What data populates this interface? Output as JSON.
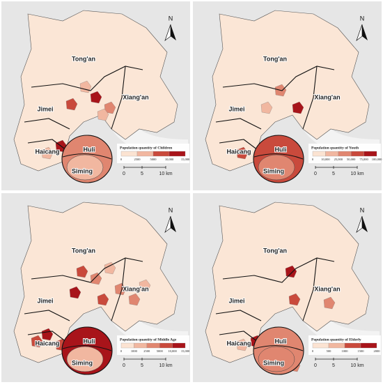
{
  "panels": [
    {
      "districts": [
        "Tong'an",
        "Xiang'an",
        "Jimei",
        "Haicang",
        "Huli",
        "Siming"
      ],
      "legend_title": "Population quantity of Children",
      "legend_ticks": [
        "0",
        "2500",
        "5000",
        "10,000",
        "15,000"
      ],
      "scale": [
        "0",
        "5",
        "10 km"
      ],
      "north": "N"
    },
    {
      "districts": [
        "Tong'an",
        "Xiang'an",
        "Jimei",
        "Haicang",
        "Huli",
        "Siming"
      ],
      "legend_title": "Population quantity of Youth",
      "legend_ticks": [
        "0",
        "10,000",
        "25,000",
        "50,000",
        "75,000",
        "100,000"
      ],
      "scale": [
        "0",
        "5",
        "10 km"
      ],
      "north": "N"
    },
    {
      "districts": [
        "Tong'an",
        "Xiang'an",
        "Jimei",
        "Haicang",
        "Huli",
        "Siming"
      ],
      "legend_title": "Population quantity of Middle Age",
      "legend_ticks": [
        "0",
        "1000",
        "2500",
        "5000",
        "10,000",
        "15,000"
      ],
      "scale": [
        "0",
        "5",
        "10 km"
      ],
      "north": "N"
    },
    {
      "districts": [
        "Tong'an",
        "Xiang'an",
        "Jimei",
        "Haicang",
        "Huli",
        "Siming"
      ],
      "legend_title": "Population quantity of Elderly",
      "legend_ticks": [
        "0",
        "500",
        "1000",
        "1500",
        "2000"
      ],
      "scale": [
        "0",
        "5",
        "10 km"
      ],
      "north": "N"
    }
  ]
}
